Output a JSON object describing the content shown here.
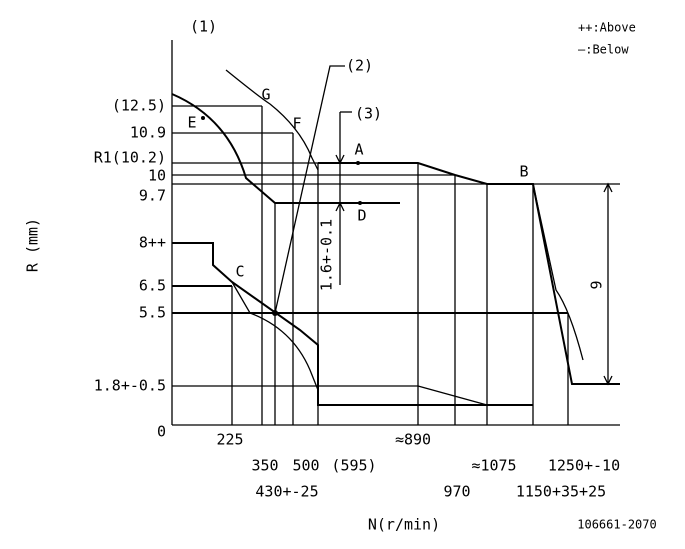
{
  "header": {
    "ref": "(1)"
  },
  "legend": [
    "++:Above",
    "—:Below"
  ],
  "callouts": [
    "(2)",
    "(3)"
  ],
  "y_labels": [
    "(12.5)",
    "10.9",
    "R1(10.2)",
    "10",
    "9.7",
    "8++",
    "6.5",
    "5.5",
    "1.8+-0.5",
    "0"
  ],
  "points": [
    "G",
    "E",
    "F",
    "A",
    "B",
    "D",
    "C"
  ],
  "dimensions": [
    "1.6+-0.1",
    "9"
  ],
  "x_labels": [
    "225",
    "350",
    "500",
    "(595)",
    "≈890",
    "970",
    "≈1075",
    "1150+35+25",
    "1250+-10",
    "430+-25"
  ],
  "axis_titles": {
    "y": "R (mm)",
    "x": "N(r/min)"
  },
  "drawing_number": "106661-2070"
}
